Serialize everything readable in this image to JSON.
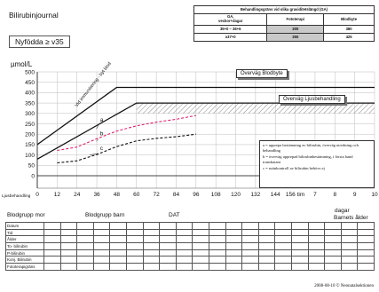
{
  "header": {
    "title": "Bilirubinjournal",
    "subtitle": "Nyfödda ≥ v35",
    "y_unit": "µmol/L"
  },
  "reference_table": {
    "caption": "Behandlingsgräns vid olika graviditetslängd (GA)",
    "col_ga": "GA,\nveckor+dagar",
    "col_photo": "Fototerapi",
    "col_exchange": "Blodbyte",
    "rows": [
      {
        "ga": "35+0 – 36+6",
        "photo": "300",
        "exchange": "380"
      },
      {
        "ga": "≥37+0",
        "photo": "350",
        "exchange": "425"
      }
    ]
  },
  "labels": {
    "treatment": "Ljusbehandling",
    "x_unit": "dagar",
    "x_title": "Barnets ålder",
    "legend": [
      "a = upprepa bestämning av bilirubin, överväg utredning och behandling",
      "b = överväg upprepad bilirubinbestämning, i första hand transkutant",
      "c = rutinkontroll av bilirubin behövs ej"
    ]
  },
  "chart_data": {
    "type": "line",
    "title": "",
    "xlabel": "Barnets ålder",
    "ylabel": "µmol/L",
    "ylim": [
      0,
      500
    ],
    "yticks": [
      0,
      50,
      100,
      150,
      200,
      250,
      300,
      350,
      400,
      450,
      500
    ],
    "x_tick_labels": [
      "0",
      "12",
      "24",
      "36",
      "48",
      "60",
      "72",
      "84",
      "96",
      "108",
      "120",
      "132",
      "144",
      "156 tim",
      "7",
      "8",
      "9",
      "10"
    ],
    "x_unit_note": "0–156 tim, därefter 7–10 dagar",
    "grid": true,
    "series": [
      {
        "name": "Överväg Blodbyte",
        "style": "solid",
        "color": "#111111",
        "x": [
          0,
          48,
          360
        ],
        "y": [
          150,
          425,
          425
        ]
      },
      {
        "name": "Överväg Ljusbehandling",
        "style": "solid",
        "color": "#111111",
        "x": [
          0,
          60,
          360
        ],
        "y": [
          80,
          350,
          350
        ]
      },
      {
        "name": "",
        "style": "dashed",
        "color": "#e0226f",
        "x": [
          12,
          24,
          36,
          48,
          60,
          72,
          84,
          96
        ],
        "y": [
          122,
          138,
          178,
          215,
          240,
          258,
          272,
          290
        ]
      },
      {
        "name": "",
        "style": "dashed",
        "color": "#111111",
        "x": [
          12,
          24,
          36,
          48,
          60,
          72,
          84,
          96
        ],
        "y": [
          62,
          72,
          102,
          140,
          168,
          180,
          188,
          200
        ]
      }
    ],
    "annotations": [
      {
        "text": "Vid immunisering - byt blod",
        "x": 24,
        "y": 330
      },
      {
        "text": "a",
        "x": 38,
        "y": 260
      },
      {
        "text": "b",
        "x": 38,
        "y": 195
      },
      {
        "text": "c",
        "x": 38,
        "y": 125
      }
    ],
    "hatched_band": {
      "x_from": 60,
      "x_to": 360,
      "y_from": 300,
      "y_to": 350
    }
  },
  "blood_groups": {
    "mother": "Blodgrupp mor",
    "child": "Blodgrupp barn",
    "dat": "DAT"
  },
  "log_table": {
    "rows": [
      "Datum",
      "Tid",
      "Ålder",
      "To- bilirubin",
      "P-bilirubin",
      "Konj. Bilirubin",
      "Fototerapigräns"
    ],
    "columns": 20
  },
  "footer": "2008-08-10 © Neonatalsektionen"
}
